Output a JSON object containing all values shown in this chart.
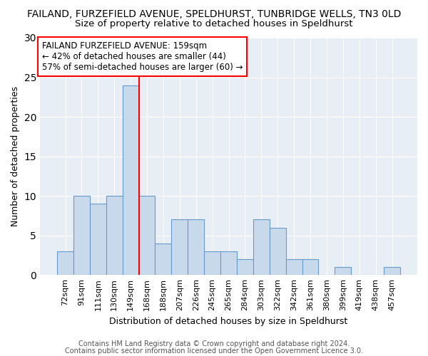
{
  "title1": "FAILAND, FURZEFIELD AVENUE, SPELDHURST, TUNBRIDGE WELLS, TN3 0LD",
  "title2": "Size of property relative to detached houses in Speldhurst",
  "xlabel": "Distribution of detached houses by size in Speldhurst",
  "ylabel": "Number of detached properties",
  "categories": [
    "72sqm",
    "91sqm",
    "111sqm",
    "130sqm",
    "149sqm",
    "168sqm",
    "188sqm",
    "207sqm",
    "226sqm",
    "245sqm",
    "265sqm",
    "284sqm",
    "303sqm",
    "322sqm",
    "342sqm",
    "361sqm",
    "380sqm",
    "399sqm",
    "419sqm",
    "438sqm",
    "457sqm"
  ],
  "values": [
    3,
    10,
    9,
    10,
    24,
    10,
    4,
    7,
    7,
    3,
    3,
    2,
    7,
    6,
    2,
    2,
    0,
    1,
    0,
    0,
    1
  ],
  "bar_color": "#c9d9ec",
  "bar_edge_color": "#6699cc",
  "vline_color": "red",
  "ylim": [
    0,
    30
  ],
  "yticks": [
    0,
    5,
    10,
    15,
    20,
    25,
    30
  ],
  "annotation_line1": "FAILAND FURZEFIELD AVENUE: 159sqm",
  "annotation_line2": "← 42% of detached houses are smaller (44)",
  "annotation_line3": "57% of semi-detached houses are larger (60) →",
  "footer1": "Contains HM Land Registry data © Crown copyright and database right 2024.",
  "footer2": "Contains public sector information licensed under the Open Government Licence 3.0.",
  "background_color": "#e8eef5",
  "title1_fontsize": 10,
  "title2_fontsize": 9.5,
  "annotation_fontsize": 8.5,
  "axis_label_fontsize": 9,
  "tick_fontsize": 8,
  "footer_fontsize": 7
}
